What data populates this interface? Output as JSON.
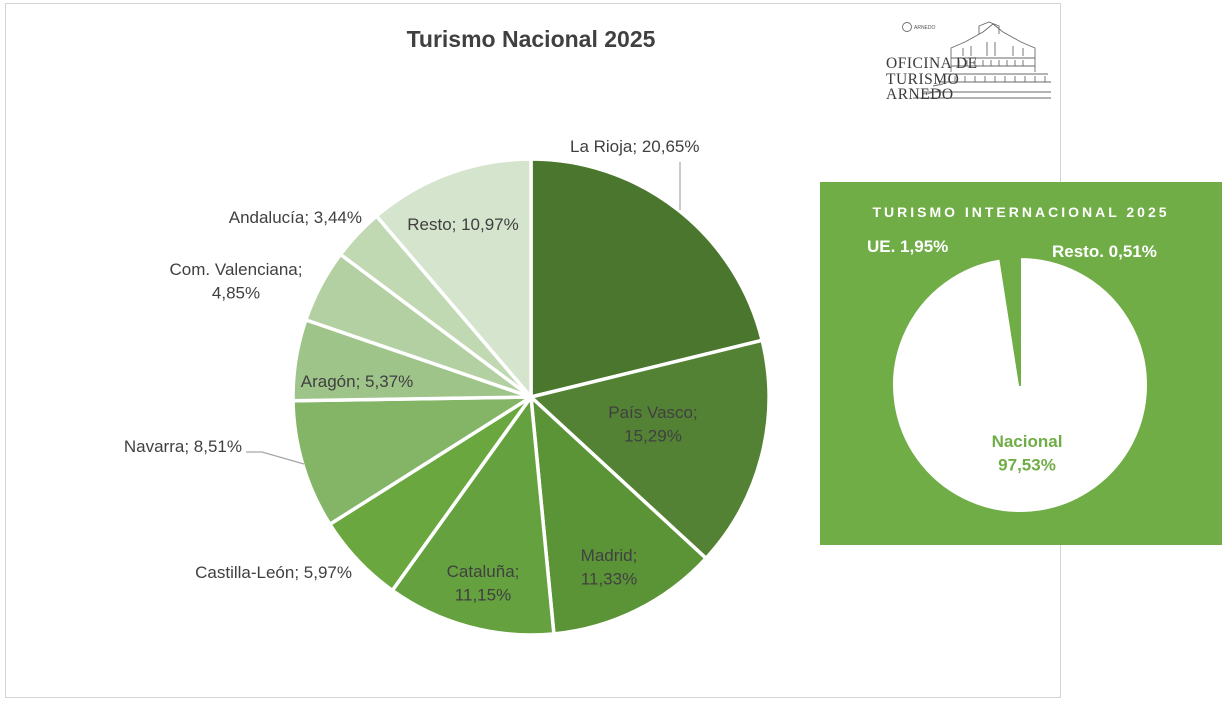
{
  "chart_data": [
    {
      "type": "pie",
      "title": "Turismo Nacional 2025",
      "categories": [
        "La Rioja",
        "País Vasco",
        "Madrid",
        "Cataluña",
        "Castilla-León",
        "Navarra",
        "Aragón",
        "Com. Valenciana",
        "Andalucía",
        "Resto"
      ],
      "values": [
        20.65,
        15.29,
        11.33,
        11.15,
        5.97,
        8.51,
        5.37,
        4.85,
        3.44,
        10.97
      ],
      "data_labels": [
        "La Rioja; 20,65%",
        "País Vasco;|15,29%",
        "Madrid;|11,33%",
        "Cataluña;|11,15%",
        "Castilla-León; 5,97%",
        "Navarra; 8,51%",
        "Aragón; 5,37%",
        "Com. Valenciana;|4,85%",
        "Andalucía; 3,44%",
        "Resto; 10,97%"
      ],
      "colors": [
        "#4a762d",
        "#548235",
        "#5b9437",
        "#65a23f",
        "#6aa73f",
        "#84b567",
        "#9fc48a",
        "#b3d0a2",
        "#c1d9b3",
        "#d5e4cc"
      ],
      "label_color": "#404040",
      "legend": "none"
    },
    {
      "type": "pie",
      "title": "TURISMO INTERNACIONAL 2025",
      "categories": [
        "Nacional",
        "UE",
        "Resto"
      ],
      "values": [
        97.53,
        1.95,
        0.51
      ],
      "data_labels": [
        "Nacional|97,53%",
        "UE. 1,95%",
        "Resto. 0,51%"
      ],
      "colors": [
        "#ffffff",
        "#70ad47",
        "#70ad47"
      ],
      "background": "#70ad47",
      "label_colors": [
        "#70ad47",
        "#ffffff",
        "#ffffff"
      ],
      "legend": "none"
    }
  ],
  "logo": {
    "lines": [
      "OFICINA DE",
      "TURISMO",
      "ARNEDO"
    ],
    "emblem_text": "ARNEDO"
  }
}
